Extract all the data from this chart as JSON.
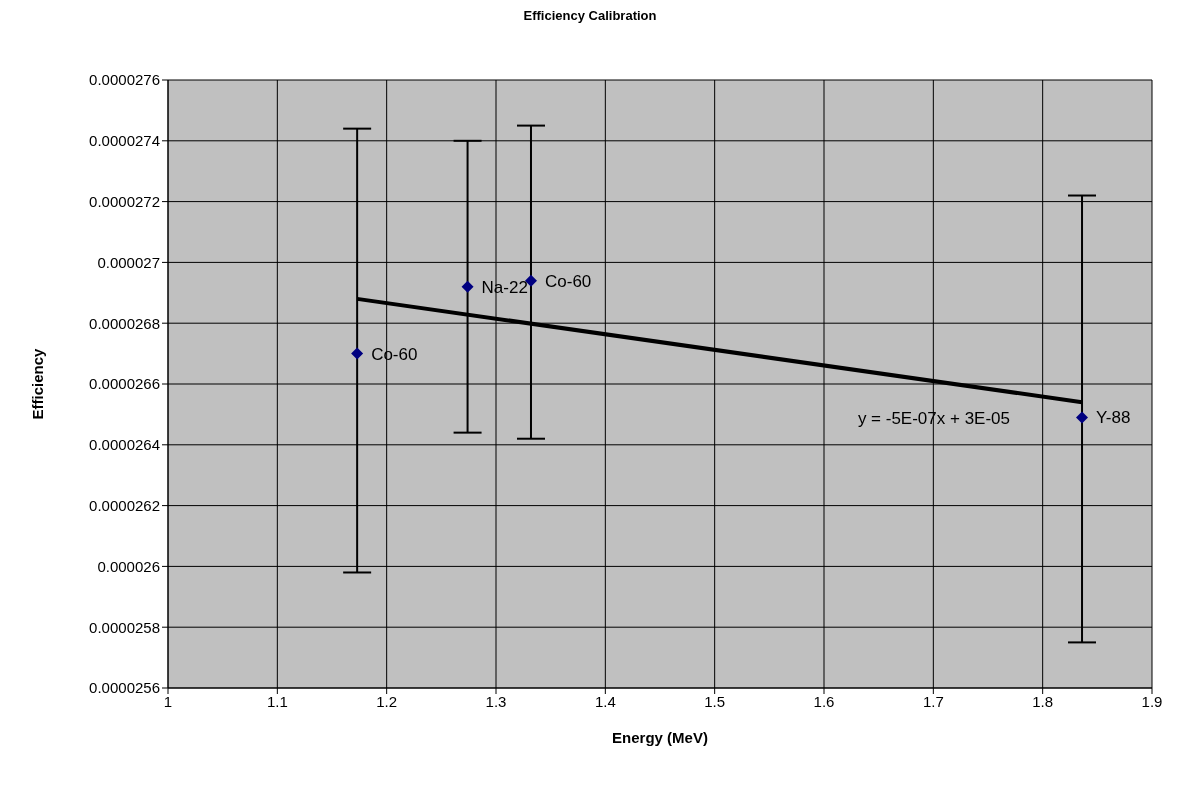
{
  "chart_data": {
    "type": "scatter",
    "title": "Efficiency Calibration",
    "xlabel": "Energy (MeV)",
    "ylabel": "Efficiency",
    "xlim": [
      1,
      1.9
    ],
    "xticks": [
      1,
      1.1,
      1.2,
      1.3,
      1.4,
      1.5,
      1.6,
      1.7,
      1.8,
      1.9
    ],
    "ylim": [
      2.56e-05,
      2.76e-05
    ],
    "yticks": [
      {
        "value": 2.56e-05,
        "label": "0.0000256"
      },
      {
        "value": 2.58e-05,
        "label": "0.0000258"
      },
      {
        "value": 2.6e-05,
        "label": "0.000026"
      },
      {
        "value": 2.62e-05,
        "label": "0.0000262"
      },
      {
        "value": 2.64e-05,
        "label": "0.0000264"
      },
      {
        "value": 2.66e-05,
        "label": "0.0000266"
      },
      {
        "value": 2.68e-05,
        "label": "0.0000268"
      },
      {
        "value": 2.7e-05,
        "label": "0.000027"
      },
      {
        "value": 2.72e-05,
        "label": "0.0000272"
      },
      {
        "value": 2.74e-05,
        "label": "0.0000274"
      },
      {
        "value": 2.76e-05,
        "label": "0.0000276"
      }
    ],
    "grid": true,
    "legend": false,
    "marker": "diamond",
    "series": [
      {
        "type": "scatter",
        "color": "#000080",
        "x": [
          1.173,
          1.274,
          1.332,
          1.836
        ],
        "values": [
          2.67e-05,
          2.692e-05,
          2.694e-05,
          2.649e-05
        ],
        "errors": [
          [
            2.598e-05,
            2.744e-05
          ],
          [
            2.644e-05,
            2.74e-05
          ],
          [
            2.642e-05,
            2.745e-05
          ],
          [
            2.575e-05,
            2.722e-05
          ]
        ]
      },
      {
        "type": "line",
        "color": "#000000",
        "marker": "none",
        "x": [
          1.173,
          1.836
        ],
        "values": [
          2.688e-05,
          2.654e-05
        ]
      }
    ],
    "annotations": [
      {
        "text": "Co-60",
        "x": 1.173,
        "y": 2.67e-05
      },
      {
        "text": "Na-22",
        "x": 1.274,
        "y": 2.692e-05
      },
      {
        "text": "Co-60",
        "x": 1.332,
        "y": 2.694e-05
      },
      {
        "text": "Y-88",
        "x": 1.836,
        "y": 2.649e-05
      },
      "y = -5E-07x + 3E-05"
    ]
  }
}
